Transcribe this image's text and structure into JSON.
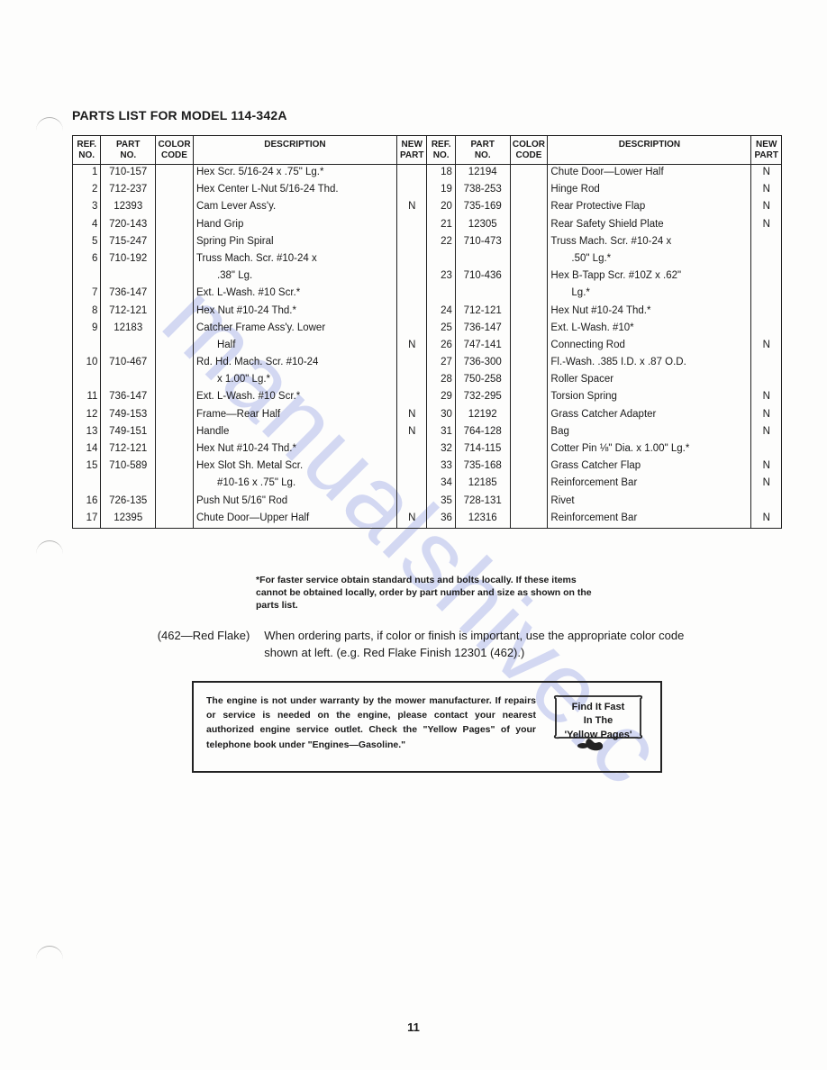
{
  "title": "PARTS LIST FOR MODEL 114-342A",
  "headers": {
    "ref": "REF.\nNO.",
    "part": "PART\nNO.",
    "code": "COLOR\nCODE",
    "desc": "DESCRIPTION",
    "new": "NEW\nPART"
  },
  "col_widths": {
    "ref": 30,
    "part": 55,
    "code": 40,
    "desc": 210,
    "new": 32
  },
  "left_rows": [
    {
      "ref": "1",
      "part": "710-157",
      "code": "",
      "desc": "Hex Scr. 5/16-24 x .75\" Lg.*",
      "new": ""
    },
    {
      "ref": "2",
      "part": "712-237",
      "code": "",
      "desc": "Hex Center L-Nut 5/16-24 Thd.",
      "new": ""
    },
    {
      "ref": "3",
      "part": "12393",
      "code": "",
      "desc": "Cam Lever Ass'y.",
      "new": "N"
    },
    {
      "ref": "4",
      "part": "720-143",
      "code": "",
      "desc": "Hand Grip",
      "new": ""
    },
    {
      "ref": "5",
      "part": "715-247",
      "code": "",
      "desc": "Spring Pin Spiral",
      "new": ""
    },
    {
      "ref": "6",
      "part": "710-192",
      "code": "",
      "desc": "Truss Mach. Scr. #10-24 x",
      "new": ""
    },
    {
      "ref": "",
      "part": "",
      "code": "",
      "desc": "  .38\" Lg.",
      "new": ""
    },
    {
      "ref": "7",
      "part": "736-147",
      "code": "",
      "desc": "Ext. L-Wash. #10 Scr.*",
      "new": ""
    },
    {
      "ref": "8",
      "part": "712-121",
      "code": "",
      "desc": "Hex Nut #10-24 Thd.*",
      "new": ""
    },
    {
      "ref": "9",
      "part": "12183",
      "code": "",
      "desc": "Catcher Frame Ass'y. Lower",
      "new": ""
    },
    {
      "ref": "",
      "part": "",
      "code": "",
      "desc": "  Half",
      "new": "N"
    },
    {
      "ref": "10",
      "part": "710-467",
      "code": "",
      "desc": "Rd. Hd. Mach. Scr. #10-24",
      "new": ""
    },
    {
      "ref": "",
      "part": "",
      "code": "",
      "desc": "  x 1.00\" Lg.*",
      "new": ""
    },
    {
      "ref": "11",
      "part": "736-147",
      "code": "",
      "desc": "Ext. L-Wash. #10 Scr.*",
      "new": ""
    },
    {
      "ref": "12",
      "part": "749-153",
      "code": "",
      "desc": "Frame—Rear Half",
      "new": "N"
    },
    {
      "ref": "13",
      "part": "749-151",
      "code": "",
      "desc": "Handle",
      "new": "N"
    },
    {
      "ref": "14",
      "part": "712-121",
      "code": "",
      "desc": "Hex Nut #10-24 Thd.*",
      "new": ""
    },
    {
      "ref": "15",
      "part": "710-589",
      "code": "",
      "desc": "Hex Slot Sh. Metal Scr.",
      "new": ""
    },
    {
      "ref": "",
      "part": "",
      "code": "",
      "desc": "  #10-16 x .75\" Lg.",
      "new": ""
    },
    {
      "ref": "16",
      "part": "726-135",
      "code": "",
      "desc": "Push Nut 5/16\" Rod",
      "new": ""
    },
    {
      "ref": "17",
      "part": "12395",
      "code": "",
      "desc": "Chute Door—Upper Half",
      "new": "N"
    }
  ],
  "right_rows": [
    {
      "ref": "18",
      "part": "12194",
      "code": "",
      "desc": "Chute Door—Lower Half",
      "new": "N"
    },
    {
      "ref": "19",
      "part": "738-253",
      "code": "",
      "desc": "Hinge Rod",
      "new": "N"
    },
    {
      "ref": "20",
      "part": "735-169",
      "code": "",
      "desc": "Rear Protective Flap",
      "new": "N"
    },
    {
      "ref": "21",
      "part": "12305",
      "code": "",
      "desc": "Rear Safety Shield Plate",
      "new": "N"
    },
    {
      "ref": "22",
      "part": "710-473",
      "code": "",
      "desc": "Truss Mach. Scr. #10-24 x",
      "new": ""
    },
    {
      "ref": "",
      "part": "",
      "code": "",
      "desc": "  .50\" Lg.*",
      "new": ""
    },
    {
      "ref": "23",
      "part": "710-436",
      "code": "",
      "desc": "Hex B-Tapp Scr. #10Z x .62\"",
      "new": ""
    },
    {
      "ref": "",
      "part": "",
      "code": "",
      "desc": "  Lg.*",
      "new": ""
    },
    {
      "ref": "24",
      "part": "712-121",
      "code": "",
      "desc": "Hex Nut #10-24 Thd.*",
      "new": ""
    },
    {
      "ref": "25",
      "part": "736-147",
      "code": "",
      "desc": "Ext. L-Wash. #10*",
      "new": ""
    },
    {
      "ref": "26",
      "part": "747-141",
      "code": "",
      "desc": "Connecting Rod",
      "new": "N"
    },
    {
      "ref": "27",
      "part": "736-300",
      "code": "",
      "desc": "Fl.-Wash. .385 I.D. x .87 O.D.",
      "new": ""
    },
    {
      "ref": "28",
      "part": "750-258",
      "code": "",
      "desc": "Roller Spacer",
      "new": ""
    },
    {
      "ref": "29",
      "part": "732-295",
      "code": "",
      "desc": "Torsion Spring",
      "new": "N"
    },
    {
      "ref": "30",
      "part": "12192",
      "code": "",
      "desc": "Grass Catcher Adapter",
      "new": "N"
    },
    {
      "ref": "31",
      "part": "764-128",
      "code": "",
      "desc": "Bag",
      "new": "N"
    },
    {
      "ref": "32",
      "part": "714-115",
      "code": "",
      "desc": "Cotter Pin ⅛\" Dia. x 1.00\" Lg.*",
      "new": ""
    },
    {
      "ref": "33",
      "part": "735-168",
      "code": "",
      "desc": "Grass Catcher Flap",
      "new": "N"
    },
    {
      "ref": "34",
      "part": "12185",
      "code": "",
      "desc": "Reinforcement Bar",
      "new": "N"
    },
    {
      "ref": "35",
      "part": "728-131",
      "code": "",
      "desc": "Rivet",
      "new": ""
    },
    {
      "ref": "36",
      "part": "12316",
      "code": "",
      "desc": "Reinforcement Bar",
      "new": "N"
    }
  ],
  "footnote": "*For faster service obtain standard nuts and bolts locally. If these items cannot be obtained locally, order by part number and size as shown on the parts list.",
  "order_label": "(462—Red Flake)",
  "order_text": "When ordering parts, if color or finish is important, use the appropriate color code shown at left. (e.g. Red Flake Finish 12301 (462).)",
  "engine_text": "The engine is not under warranty by the mower manufacturer. If repairs or service is needed on the engine, please contact your nearest authorized engine service outlet. Check the \"Yellow Pages\" of your telephone book under \"Engines—Gasoline.\"",
  "yp_line1": "Find It Fast",
  "yp_line2": "In The",
  "yp_line3": "'Yellow Pages'",
  "page_number": "11",
  "watermark": "manualshive.c",
  "colors": {
    "text": "#1a1a1a",
    "border": "#222222",
    "watermark": "#5b6fd6",
    "background": "#fdfdfc"
  },
  "typography": {
    "title_fontsize": 14,
    "title_weight": 700,
    "table_fontsize": 11.5,
    "header_fontsize": 10,
    "engine_fontsize": 10.5,
    "pagenum_fontsize": 13
  }
}
